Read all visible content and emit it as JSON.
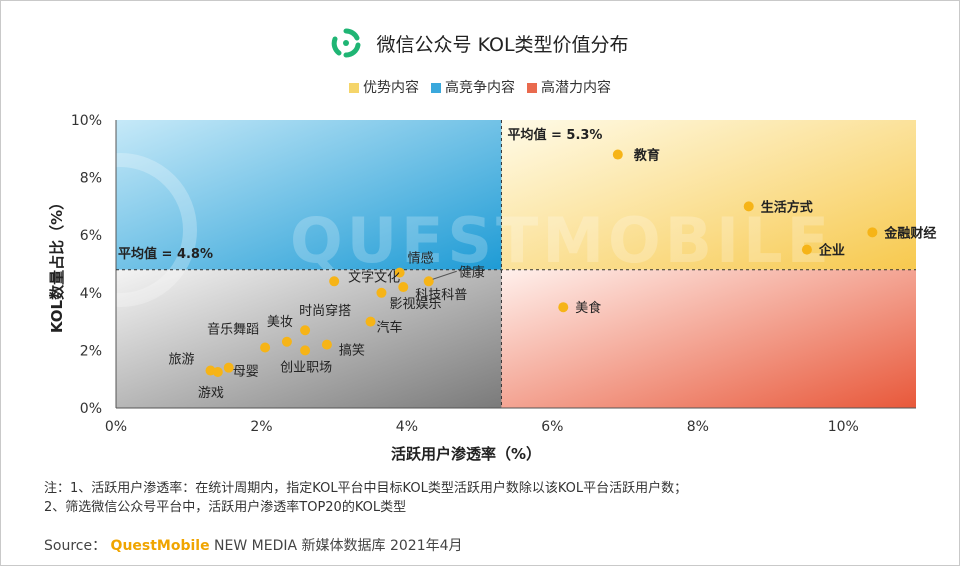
{
  "title": "微信公众号 KOL类型价值分布",
  "legend": [
    {
      "label": "优势内容",
      "color": "#f5d56a"
    },
    {
      "label": "高竞争内容",
      "color": "#3aa8dc"
    },
    {
      "label": "高潜力内容",
      "color": "#e96a4e"
    }
  ],
  "watermark": "QUESTMOBILE",
  "notes": [
    "注：1、活跃用户渗透率：在统计周期内，指定KOL平台中目标KOL类型活跃用户数除以该KOL平台活跃用户数；",
    "2、筛选微信公众号平台中，活跃用户渗透率TOP20的KOL类型"
  ],
  "source": {
    "prefix": "Source：",
    "brand": "QuestMobile",
    "rest": " NEW MEDIA 新媒体数据库 2021年4月"
  },
  "chart_data": {
    "type": "scatter",
    "title": "微信公众号 KOL类型价值分布",
    "xlabel": "活跃用户渗透率（%）",
    "ylabel": "KOL数量占比（%）",
    "xlim": [
      0,
      11
    ],
    "ylim": [
      0,
      10
    ],
    "xticks": [
      0,
      2,
      4,
      6,
      8,
      10
    ],
    "yticks": [
      0,
      2,
      4,
      6,
      8,
      10
    ],
    "xtick_labels": [
      "0%",
      "2%",
      "4%",
      "6%",
      "8%",
      "10%"
    ],
    "ytick_labels": [
      "0%",
      "2%",
      "4%",
      "6%",
      "8%",
      "10%"
    ],
    "avg_x": 5.3,
    "avg_y": 4.8,
    "avg_x_label": "平均值 = 5.3%",
    "avg_y_label": "平均值 = 4.8%",
    "point_color": "#f6b417",
    "points": [
      {
        "label": "教育",
        "x": 6.9,
        "y": 8.8,
        "bold": true
      },
      {
        "label": "生活方式",
        "x": 8.7,
        "y": 7.0,
        "bold": true
      },
      {
        "label": "金融财经",
        "x": 10.4,
        "y": 6.1,
        "bold": true
      },
      {
        "label": "企业",
        "x": 9.5,
        "y": 5.5,
        "bold": true
      },
      {
        "label": "美食",
        "x": 6.15,
        "y": 3.5,
        "bold": false
      },
      {
        "label": "情感",
        "x": 3.9,
        "y": 4.7,
        "bold": false
      },
      {
        "label": "健康",
        "x": 4.3,
        "y": 4.4,
        "bold": false
      },
      {
        "label": "文字文化",
        "x": 3.0,
        "y": 4.4,
        "bold": false
      },
      {
        "label": "科技科普",
        "x": 3.95,
        "y": 4.2,
        "bold": false
      },
      {
        "label": "影视娱乐",
        "x": 3.65,
        "y": 4.0,
        "bold": false
      },
      {
        "label": "汽车",
        "x": 3.5,
        "y": 3.0,
        "bold": false
      },
      {
        "label": "时尚穿搭",
        "x": 2.6,
        "y": 2.7,
        "bold": false
      },
      {
        "label": "美妆",
        "x": 2.35,
        "y": 2.3,
        "bold": false
      },
      {
        "label": "音乐舞蹈",
        "x": 2.05,
        "y": 2.1,
        "bold": false
      },
      {
        "label": "搞笑",
        "x": 2.9,
        "y": 2.2,
        "bold": false
      },
      {
        "label": "创业职场",
        "x": 2.6,
        "y": 2.0,
        "bold": false
      },
      {
        "label": "母婴",
        "x": 1.55,
        "y": 1.4,
        "bold": false
      },
      {
        "label": "旅游",
        "x": 1.3,
        "y": 1.3,
        "bold": false
      },
      {
        "label": "游戏",
        "x": 1.4,
        "y": 1.25,
        "bold": false
      }
    ]
  }
}
